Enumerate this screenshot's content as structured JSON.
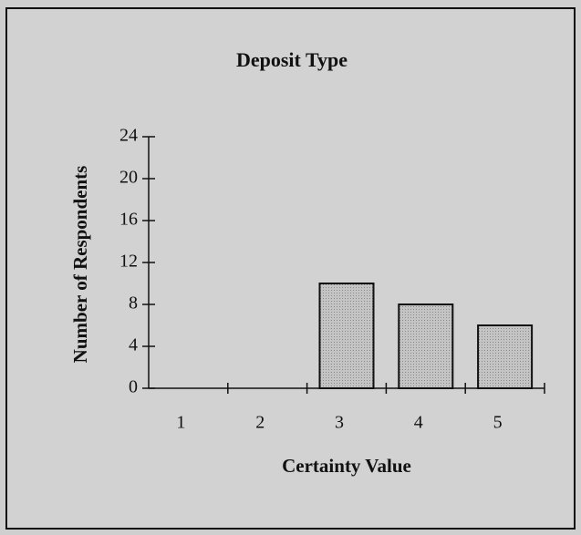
{
  "chart_data": {
    "type": "bar",
    "title": "Deposit Type",
    "xlabel": "Certainty Value",
    "ylabel": "Number of Respondents",
    "categories": [
      "1",
      "2",
      "3",
      "4",
      "5"
    ],
    "values": [
      0,
      0,
      10,
      8,
      6
    ],
    "color": "#b9b9b9",
    "ylim": [
      0,
      24
    ],
    "yticks": [
      0,
      4,
      8,
      12,
      16,
      20,
      24
    ],
    "grid": false
  }
}
